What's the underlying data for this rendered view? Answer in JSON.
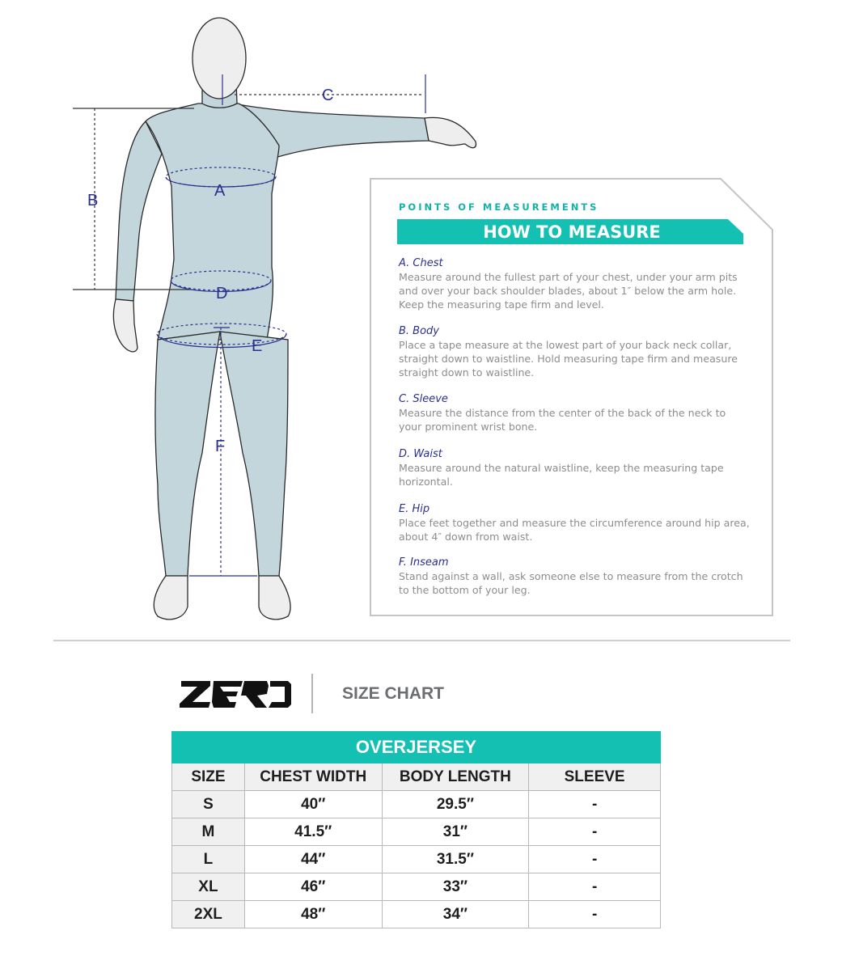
{
  "figure": {
    "labels": {
      "a": "A",
      "b": "B",
      "c": "C",
      "d": "D",
      "e": "E",
      "f": "F"
    },
    "body_color": "#c3d6db",
    "line_color": "#2b2f8f"
  },
  "panel": {
    "subtitle": "POINTS OF MEASUREMENTS",
    "title": "HOW TO MEASURE",
    "accent": "#13c0b2",
    "sections": [
      {
        "heading": "A. Chest",
        "lines": [
          "Measure around the fullest part of your chest, under your arm pits",
          "and over your back shoulder blades, about 1″ below the arm hole.",
          "Keep the measuring tape firm and level."
        ]
      },
      {
        "heading": "B. Body",
        "lines": [
          "Place a tape measure at the lowest part of your back neck collar,",
          "straight down to waistline. Hold measuring tape firm and measure",
          "straight down to waistline."
        ]
      },
      {
        "heading": "C. Sleeve",
        "lines": [
          "Measure the distance from the center of the back of the neck to",
          "your prominent wrist bone."
        ]
      },
      {
        "heading": "D. Waist",
        "lines": [
          "Measure around the natural waistline, keep the measuring tape",
          "horizontal."
        ]
      },
      {
        "heading": "E. Hip",
        "lines": [
          "Place feet together and measure the circumference around hip area,",
          "about 4″ down from waist."
        ]
      },
      {
        "heading": "F. Inseam",
        "lines": [
          "Stand against a wall, ask someone else to measure from the crotch",
          "to the bottom of your leg."
        ]
      }
    ]
  },
  "brand": {
    "logo_text": "ZERO",
    "heading": "SIZE CHART"
  },
  "table": {
    "title": "OVERJERSEY",
    "headers": [
      "SIZE",
      "CHEST WIDTH",
      "BODY LENGTH",
      "SLEEVE"
    ],
    "rows": [
      [
        "S",
        "40″",
        "29.5″",
        "-"
      ],
      [
        "M",
        "41.5″",
        "31″",
        "-"
      ],
      [
        "L",
        "44″",
        "31.5″",
        "-"
      ],
      [
        "XL",
        "46″",
        "33″",
        "-"
      ],
      [
        "2XL",
        "48″",
        "34″",
        "-"
      ]
    ]
  }
}
